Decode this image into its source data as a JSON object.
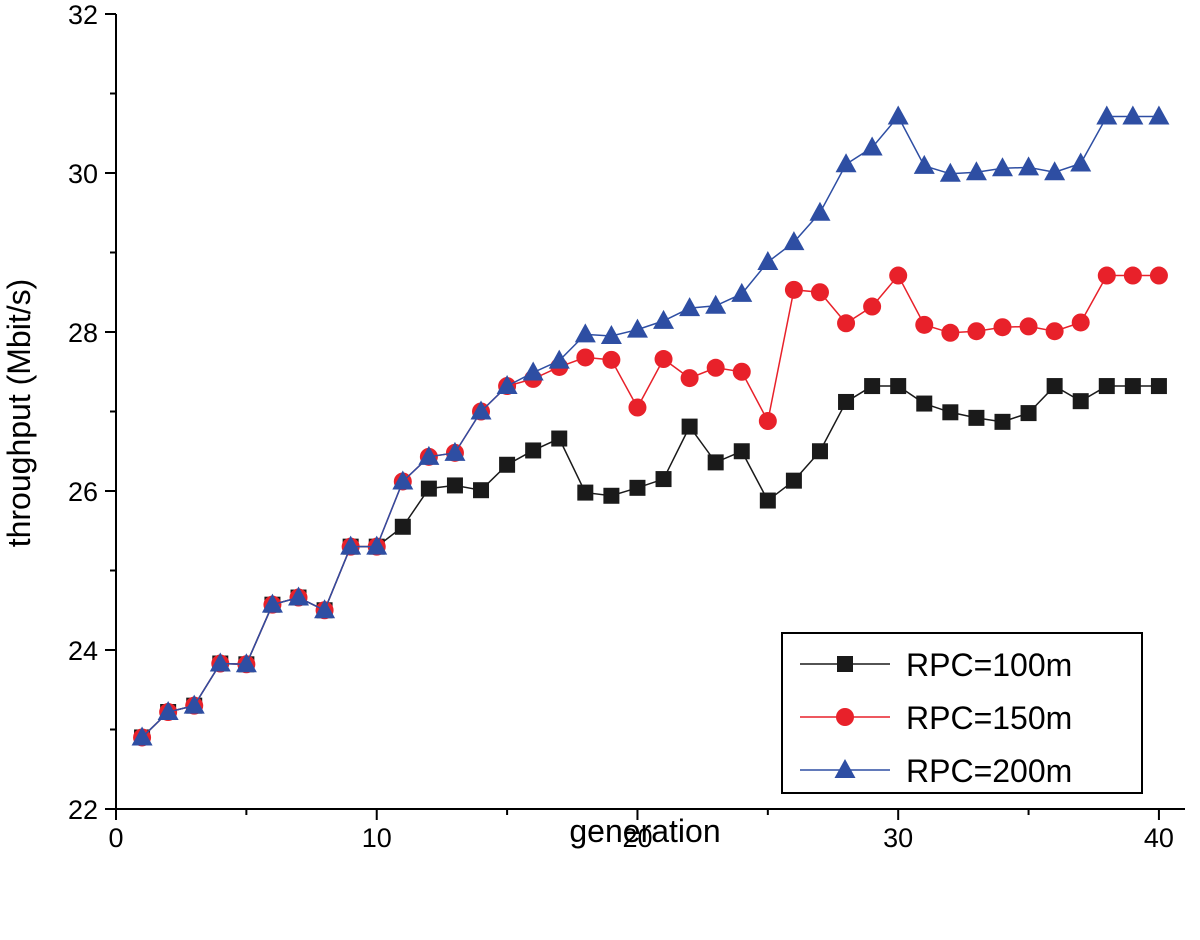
{
  "chart_data": {
    "type": "line",
    "xlabel": "generation",
    "ylabel": "throughput (Mbit/s)",
    "xlim": [
      0,
      41
    ],
    "ylim": [
      22,
      32
    ],
    "xticks": [
      0,
      10,
      20,
      30,
      40
    ],
    "yticks": [
      22,
      24,
      26,
      28,
      30,
      32
    ],
    "x": [
      1,
      2,
      3,
      4,
      5,
      6,
      7,
      8,
      9,
      10,
      11,
      12,
      13,
      14,
      15,
      16,
      17,
      18,
      19,
      20,
      21,
      22,
      23,
      24,
      25,
      26,
      27,
      28,
      29,
      30,
      31,
      32,
      33,
      34,
      35,
      36,
      37,
      38,
      39,
      40
    ],
    "legend_position": "bottom-right",
    "series": [
      {
        "name": "RPC=100m",
        "color": "#1a1a1a",
        "marker": "square",
        "values": [
          22.9,
          23.22,
          23.3,
          23.83,
          23.82,
          24.57,
          24.66,
          24.5,
          25.3,
          25.3,
          25.55,
          26.03,
          26.07,
          26.01,
          26.33,
          26.51,
          26.66,
          25.98,
          25.94,
          26.04,
          26.15,
          26.81,
          26.36,
          26.5,
          25.88,
          26.13,
          26.5,
          27.12,
          27.32,
          27.32,
          27.1,
          26.99,
          26.92,
          26.87,
          26.98,
          27.32,
          27.13,
          27.32,
          27.32,
          27.32
        ]
      },
      {
        "name": "RPC=150m",
        "color": "#e8212a",
        "marker": "circle",
        "values": [
          22.9,
          23.22,
          23.3,
          23.83,
          23.82,
          24.57,
          24.66,
          24.5,
          25.3,
          25.3,
          26.12,
          26.43,
          26.48,
          27.0,
          27.32,
          27.41,
          27.56,
          27.68,
          27.65,
          27.05,
          27.66,
          27.42,
          27.55,
          27.5,
          26.88,
          28.53,
          28.5,
          28.11,
          28.32,
          28.71,
          28.09,
          27.99,
          28.01,
          28.06,
          28.07,
          28.01,
          28.12,
          28.71,
          28.71,
          28.71
        ]
      },
      {
        "name": "RPC=200m",
        "color": "#2e4ea3",
        "marker": "triangle",
        "values": [
          22.9,
          23.22,
          23.3,
          23.83,
          23.82,
          24.57,
          24.66,
          24.5,
          25.3,
          25.3,
          26.12,
          26.43,
          26.48,
          27.0,
          27.32,
          27.49,
          27.64,
          27.97,
          27.95,
          28.03,
          28.14,
          28.3,
          28.33,
          28.48,
          28.88,
          29.13,
          29.5,
          30.11,
          30.32,
          30.71,
          30.09,
          29.99,
          30.01,
          30.06,
          30.07,
          30.01,
          30.12,
          30.71,
          30.71,
          30.71
        ]
      }
    ]
  }
}
